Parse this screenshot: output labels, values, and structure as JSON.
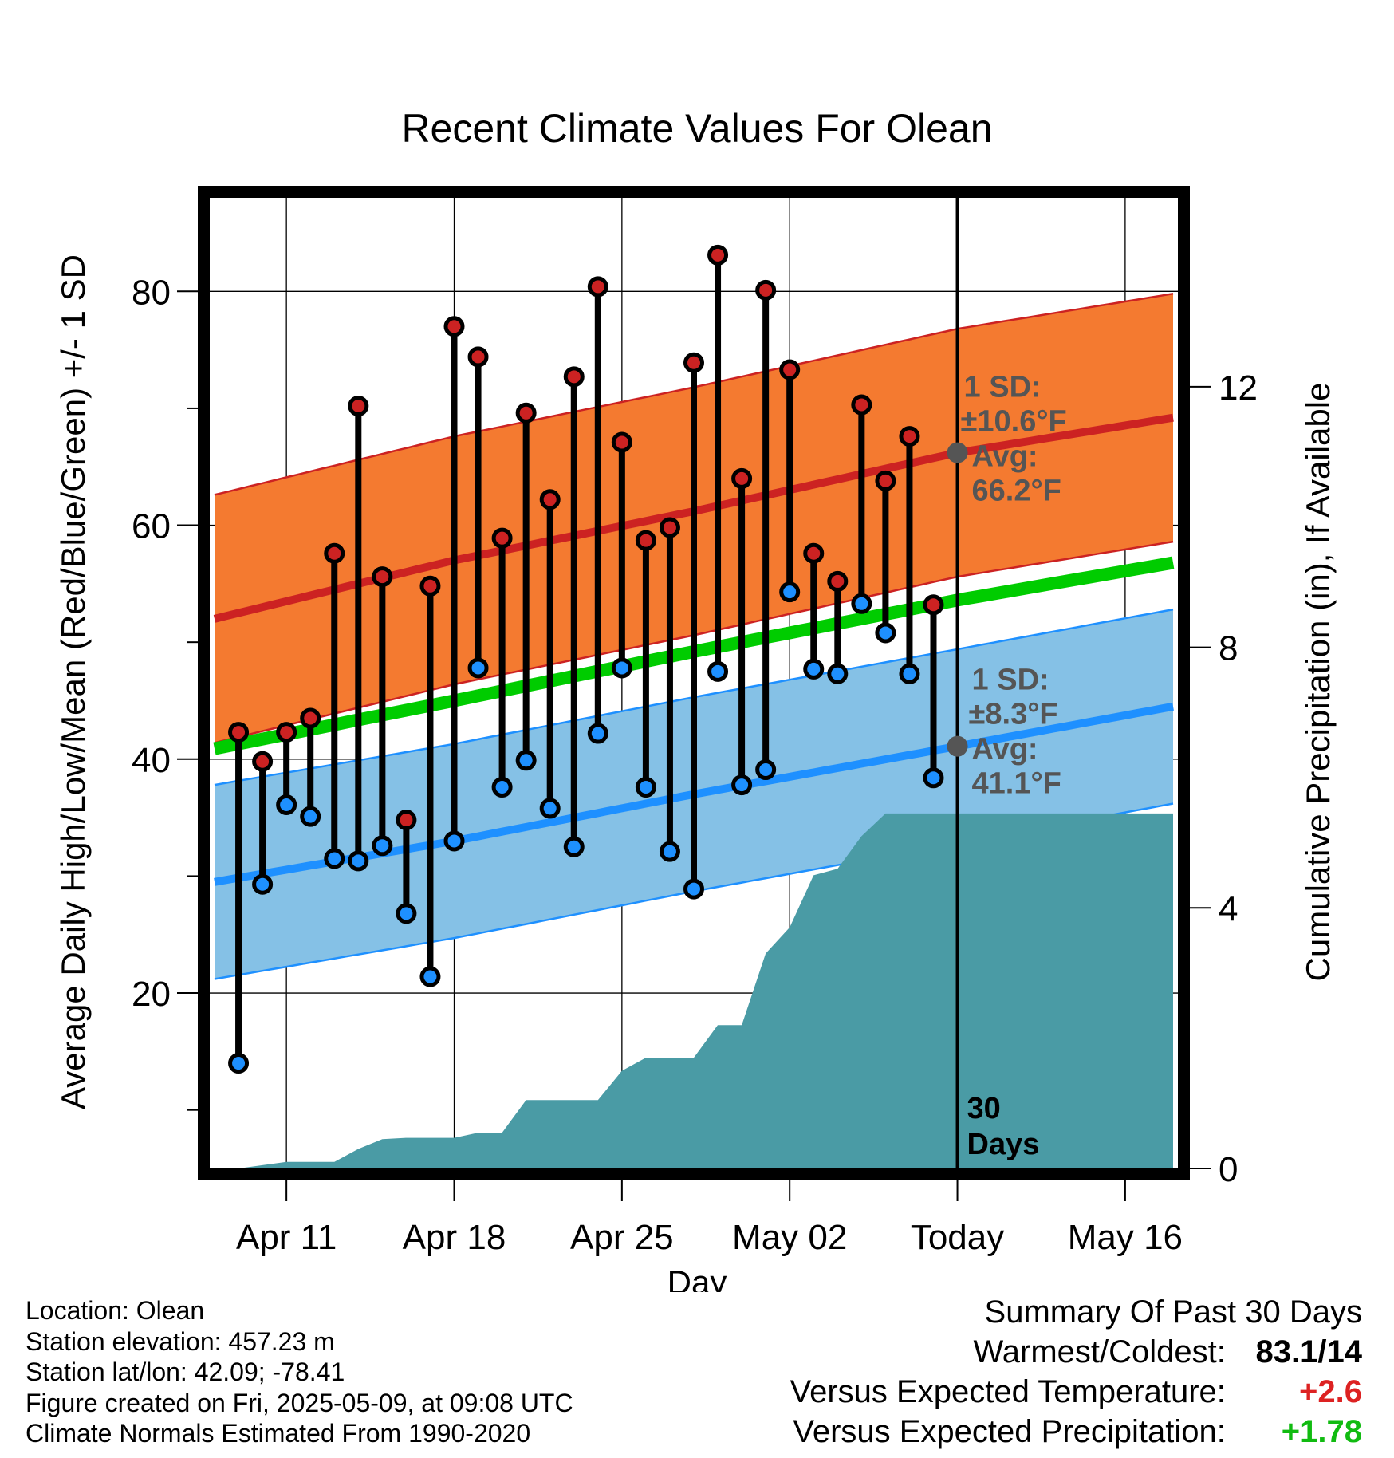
{
  "chart_data": {
    "type": "line",
    "title": "Recent Climate Values For Olean",
    "xlabel": "Day",
    "ylabel": "Average Daily High/Low/Mean (Red/Blue/Green) +/- 1 SD",
    "y2label": "Cumulative Precipitation (in), If Available",
    "x_tick_labels": [
      "Apr 11",
      "Apr 18",
      "Apr 25",
      "May 02",
      "Today",
      "May 16"
    ],
    "x_tick_days": [
      3,
      10,
      17,
      24,
      31,
      38
    ],
    "x_range": [
      -0.2,
      40.2
    ],
    "ylim": [
      5,
      88
    ],
    "y_ticks": [
      20,
      40,
      60,
      80
    ],
    "y2lim": [
      0,
      14.9
    ],
    "y2_ticks": [
      0,
      4,
      8,
      12
    ],
    "today_day": 31,
    "daily_high": [
      42.3,
      39.8,
      42.3,
      43.5,
      57.6,
      70.2,
      55.6,
      34.8,
      54.8,
      77.0,
      74.4,
      58.9,
      69.6,
      62.2,
      72.7,
      80.4,
      67.1,
      58.7,
      59.8,
      73.9,
      83.1,
      64.0,
      80.1,
      73.3,
      57.6,
      55.2,
      70.3,
      63.8,
      67.6,
      53.2
    ],
    "daily_low": [
      14.0,
      29.3,
      36.1,
      35.1,
      31.5,
      31.3,
      32.6,
      26.8,
      21.4,
      33.0,
      47.8,
      37.6,
      39.9,
      35.8,
      32.5,
      42.2,
      47.8,
      37.6,
      32.1,
      28.9,
      47.5,
      37.8,
      39.1,
      54.3,
      47.7,
      47.3,
      53.3,
      50.8,
      47.3,
      38.4
    ],
    "normal_high": {
      "days": [
        0,
        10,
        20,
        31,
        40
      ],
      "values": [
        52.0,
        57.0,
        61.2,
        66.2,
        69.2
      ]
    },
    "normal_low": {
      "days": [
        0,
        10,
        20,
        31,
        40
      ],
      "values": [
        29.5,
        33.0,
        37.0,
        41.1,
        44.5
      ]
    },
    "normal_mean": {
      "days": [
        0,
        10,
        20,
        31,
        40
      ],
      "values": [
        40.9,
        45.0,
        49.2,
        53.6,
        56.8
      ]
    },
    "high_sd": 10.6,
    "low_sd": 8.3,
    "cumulative_precip": {
      "days": [
        0,
        1,
        2,
        3,
        4,
        5,
        6,
        7,
        8,
        9,
        10,
        11,
        12,
        13,
        14,
        15,
        16,
        17,
        18,
        19,
        20,
        21,
        22,
        23,
        24,
        25,
        26,
        27,
        28,
        29,
        30,
        31,
        40
      ],
      "values": [
        0.0,
        0.0,
        0.05,
        0.1,
        0.1,
        0.1,
        0.3,
        0.45,
        0.47,
        0.47,
        0.47,
        0.55,
        0.55,
        1.05,
        1.05,
        1.05,
        1.05,
        1.5,
        1.7,
        1.7,
        1.7,
        2.2,
        2.2,
        3.3,
        3.7,
        4.5,
        4.6,
        5.1,
        5.45,
        5.45,
        5.45,
        5.45,
        5.45
      ]
    },
    "annotations": {
      "high_sd_label": "1 SD:",
      "high_sd_value": "±10.6°F",
      "high_avg_label": "Avg:",
      "high_avg_value": "66.2°F",
      "low_sd_label": "1 SD:",
      "low_sd_value": "±8.3°F",
      "low_avg_label": "Avg:",
      "low_avg_value": "41.1°F",
      "days_num": "30",
      "days_word": "Days"
    },
    "colors": {
      "high_band": "#f47a30",
      "high_line": "#cc2222",
      "low_band": "#85c1e6",
      "low_line": "#1e90ff",
      "mean_line": "#00cc00",
      "precip": "#4a9ba5",
      "high_marker": "#cc2222",
      "low_marker": "#1e90ff",
      "avg_dot": "#555555"
    },
    "grid": true
  },
  "footer": {
    "location": "Location: Olean",
    "elevation": "Station elevation: 457.23 m",
    "latlon": "Station lat/lon: 42.09; -78.41",
    "created": "Figure created on Fri, 2025-05-09, at 09:08 UTC",
    "normals": "Climate Normals Estimated From 1990-2020"
  },
  "summary": {
    "heading": "Summary Of Past 30 Days",
    "warmest_label": "Warmest/Coldest:",
    "warmest_value": "83.1/14",
    "temp_label": "Versus Expected Temperature:",
    "temp_value": "+2.6",
    "temp_color": "#dd2222",
    "precip_label": "Versus Expected Precipitation:",
    "precip_value": "+1.78",
    "precip_color": "#11bb11"
  }
}
